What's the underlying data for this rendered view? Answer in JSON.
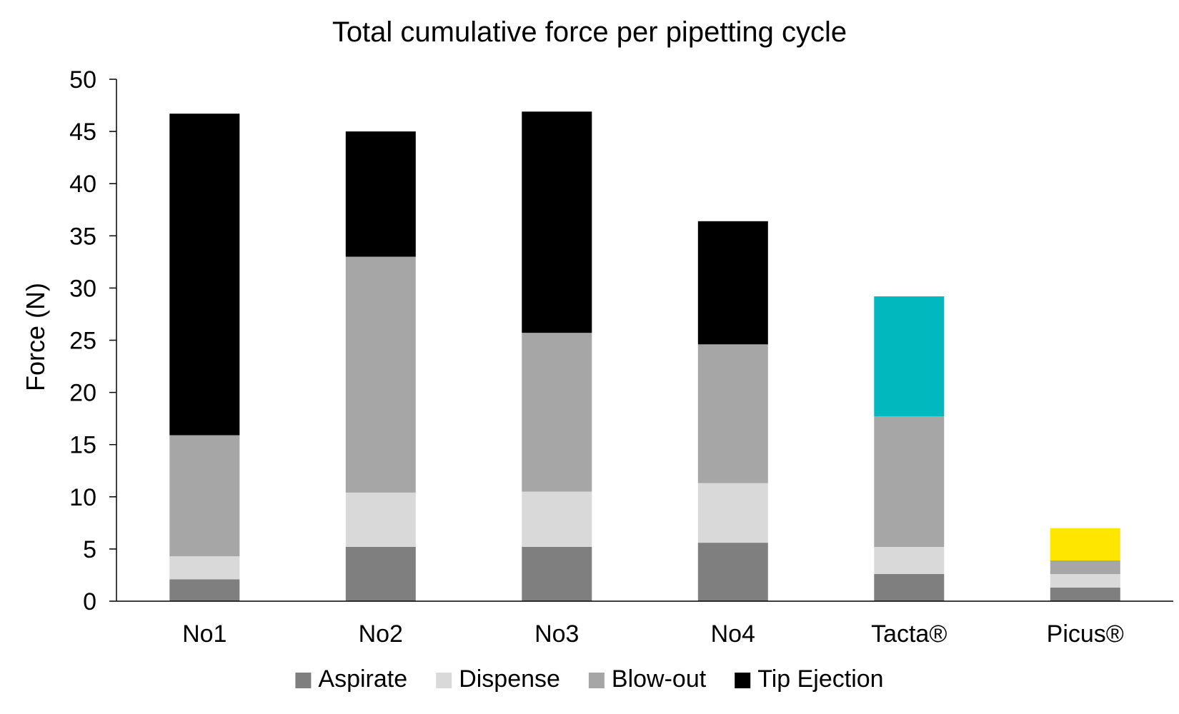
{
  "chart_data": {
    "type": "bar",
    "stacked": true,
    "title": "Total cumulative force per pipetting cycle",
    "xlabel": "",
    "ylabel": "Force (N)",
    "ylim": [
      0,
      50
    ],
    "yticks": [
      0,
      5,
      10,
      15,
      20,
      25,
      30,
      35,
      40,
      45,
      50
    ],
    "grid": false,
    "legend_position": "bottom",
    "categories": [
      "No1",
      "No2",
      "No3",
      "No4",
      "Tacta®",
      "Picus®"
    ],
    "series": [
      {
        "name": "Aspirate",
        "color": "#7f7f7f",
        "values": [
          2.1,
          5.2,
          5.2,
          5.6,
          2.6,
          1.3
        ]
      },
      {
        "name": "Dispense",
        "color": "#d9d9d9",
        "values": [
          2.2,
          5.2,
          5.3,
          5.7,
          2.6,
          1.3
        ]
      },
      {
        "name": "Blow-out",
        "color": "#a6a6a6",
        "values": [
          11.6,
          22.6,
          15.2,
          13.3,
          12.5,
          1.3
        ]
      },
      {
        "name": "Tip Ejection",
        "color": "#000000",
        "values": [
          30.8,
          12.0,
          21.2,
          11.8,
          11.5,
          3.1
        ],
        "point_colors": [
          "#000000",
          "#000000",
          "#000000",
          "#000000",
          "#00b8bd",
          "#ffe600"
        ]
      }
    ]
  }
}
